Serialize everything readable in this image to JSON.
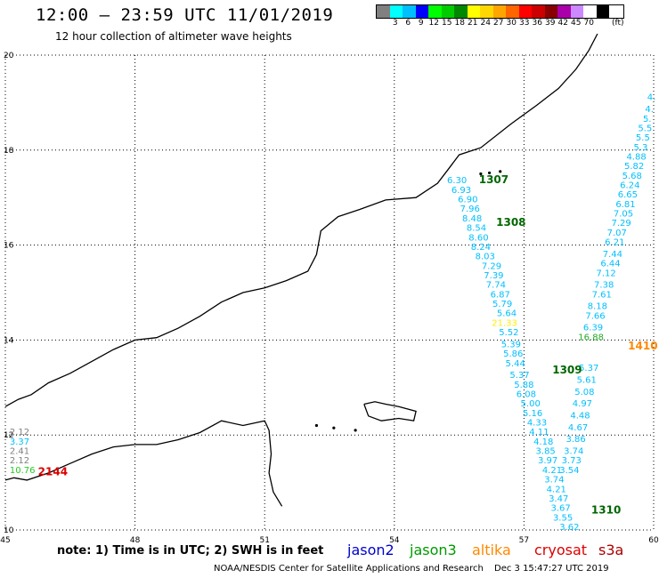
{
  "header": {
    "title": "12:00 — 23:59 UTC 11/01/2019",
    "subtitle": "12 hour collection of altimeter wave heights"
  },
  "scale": {
    "unit": "(ft)",
    "bins": [
      {
        "label": "",
        "color": "#808080"
      },
      {
        "label": "3",
        "color": "#00ffff"
      },
      {
        "label": "6",
        "color": "#00bfff"
      },
      {
        "label": "9",
        "color": "#0000ff"
      },
      {
        "label": "12",
        "color": "#00ff00"
      },
      {
        "label": "15",
        "color": "#00cc00"
      },
      {
        "label": "18",
        "color": "#008800"
      },
      {
        "label": "21",
        "color": "#ffff00"
      },
      {
        "label": "24",
        "color": "#ffd700"
      },
      {
        "label": "27",
        "color": "#ffa500"
      },
      {
        "label": "30",
        "color": "#ff6600"
      },
      {
        "label": "33",
        "color": "#ff0000"
      },
      {
        "label": "36",
        "color": "#cc0000"
      },
      {
        "label": "39",
        "color": "#880000"
      },
      {
        "label": "42",
        "color": "#aa00aa"
      },
      {
        "label": "45",
        "color": "#cc88ff"
      },
      {
        "label": "70",
        "color": "#ffffff"
      },
      {
        "label": "",
        "color": "#000000"
      }
    ]
  },
  "axes": {
    "lon_ticks": [
      "45",
      "48",
      "51",
      "54",
      "57",
      "60"
    ],
    "lat_ticks": [
      "20",
      "18",
      "16",
      "14",
      "12",
      "10"
    ]
  },
  "map_data": {
    "lon_range": [
      45,
      60
    ],
    "lat_range": [
      10,
      20
    ],
    "coastline": [
      [
        45.0,
        11.05
      ],
      [
        45.2,
        11.1
      ],
      [
        45.5,
        11.05
      ],
      [
        46.0,
        11.2
      ],
      [
        46.5,
        11.4
      ],
      [
        47.0,
        11.6
      ],
      [
        47.5,
        11.75
      ],
      [
        48.0,
        11.8
      ],
      [
        48.5,
        11.8
      ],
      [
        49.0,
        11.9
      ],
      [
        49.5,
        12.05
      ],
      [
        50.0,
        12.3
      ],
      [
        50.5,
        12.2
      ],
      [
        51.0,
        12.3
      ],
      [
        51.1,
        12.1
      ],
      [
        51.15,
        11.6
      ],
      [
        51.1,
        11.2
      ],
      [
        51.2,
        10.8
      ],
      [
        51.4,
        10.5
      ]
    ],
    "coastline_north": [
      [
        45.0,
        12.6
      ],
      [
        45.3,
        12.75
      ],
      [
        45.6,
        12.85
      ],
      [
        46.0,
        13.1
      ],
      [
        46.5,
        13.3
      ],
      [
        47.0,
        13.55
      ],
      [
        47.5,
        13.8
      ],
      [
        48.0,
        14.0
      ],
      [
        48.5,
        14.05
      ],
      [
        49.0,
        14.25
      ],
      [
        49.5,
        14.5
      ],
      [
        50.0,
        14.8
      ],
      [
        50.5,
        15.0
      ],
      [
        51.0,
        15.1
      ],
      [
        51.5,
        15.25
      ],
      [
        52.0,
        15.45
      ],
      [
        52.2,
        15.8
      ],
      [
        52.3,
        16.3
      ],
      [
        52.7,
        16.6
      ],
      [
        53.2,
        16.75
      ],
      [
        53.8,
        16.95
      ],
      [
        54.5,
        17.0
      ],
      [
        55.0,
        17.3
      ],
      [
        55.25,
        17.6
      ],
      [
        55.5,
        17.9
      ],
      [
        56.0,
        18.05
      ],
      [
        56.7,
        18.55
      ],
      [
        57.3,
        18.95
      ],
      [
        57.8,
        19.3
      ],
      [
        58.2,
        19.7
      ],
      [
        58.5,
        20.1
      ],
      [
        58.7,
        20.45
      ]
    ],
    "island_socotra": [
      [
        53.3,
        12.65
      ],
      [
        53.55,
        12.7
      ],
      [
        53.8,
        12.65
      ],
      [
        54.1,
        12.6
      ],
      [
        54.5,
        12.5
      ],
      [
        54.45,
        12.3
      ],
      [
        54.1,
        12.35
      ],
      [
        53.7,
        12.3
      ],
      [
        53.4,
        12.4
      ],
      [
        53.3,
        12.65
      ]
    ],
    "islets": [
      [
        52.2,
        12.2
      ],
      [
        52.6,
        12.15
      ],
      [
        53.1,
        12.1
      ],
      [
        56.0,
        17.5
      ],
      [
        56.2,
        17.52
      ],
      [
        56.45,
        17.55
      ]
    ],
    "passes": [
      {
        "label": "1307",
        "lon": 56.3,
        "lat": 17.3,
        "color": "#006600"
      },
      {
        "label": "1308",
        "lon": 56.7,
        "lat": 16.4,
        "color": "#006600"
      },
      {
        "label": "1309",
        "lon": 58.0,
        "lat": 13.3,
        "color": "#006600"
      },
      {
        "label": "1310",
        "lon": 58.9,
        "lat": 10.35,
        "color": "#006600"
      },
      {
        "label": "1410",
        "lon": 59.75,
        "lat": 13.8,
        "color": "#ff8800"
      },
      {
        "label": "2144",
        "lon": 46.1,
        "lat": 11.15,
        "color": "#dd0000"
      }
    ],
    "track_a": [
      {
        "v": "6.30",
        "lon": 55.45,
        "lat": 17.3
      },
      {
        "v": "6.93",
        "lon": 55.55,
        "lat": 17.1
      },
      {
        "v": "6.90",
        "lon": 55.7,
        "lat": 16.9
      },
      {
        "v": "7.96",
        "lon": 55.75,
        "lat": 16.7
      },
      {
        "v": "8.48",
        "lon": 55.8,
        "lat": 16.5
      },
      {
        "v": "8.54",
        "lon": 55.9,
        "lat": 16.3
      },
      {
        "v": "8.60",
        "lon": 55.95,
        "lat": 16.1
      },
      {
        "v": "8.24",
        "lon": 56.0,
        "lat": 15.9
      },
      {
        "v": "8.03",
        "lon": 56.1,
        "lat": 15.7
      },
      {
        "v": "7.29",
        "lon": 56.25,
        "lat": 15.5
      },
      {
        "v": "7.39",
        "lon": 56.3,
        "lat": 15.3
      },
      {
        "v": "7.74",
        "lon": 56.35,
        "lat": 15.1
      },
      {
        "v": "6.87",
        "lon": 56.45,
        "lat": 14.9
      },
      {
        "v": "5.79",
        "lon": 56.5,
        "lat": 14.7
      },
      {
        "v": "5.64",
        "lon": 56.6,
        "lat": 14.5
      },
      {
        "v": "21.33",
        "lon": 56.55,
        "lat": 14.3,
        "color": "#ffee00"
      },
      {
        "v": "5.52",
        "lon": 56.65,
        "lat": 14.1
      },
      {
        "v": "5.39",
        "lon": 56.7,
        "lat": 13.85
      },
      {
        "v": "5.86",
        "lon": 56.75,
        "lat": 13.65
      },
      {
        "v": "5.44",
        "lon": 56.8,
        "lat": 13.45
      },
      {
        "v": "5.37",
        "lon": 56.9,
        "lat": 13.2
      },
      {
        "v": "5.88",
        "lon": 57.0,
        "lat": 13.0
      },
      {
        "v": "6.08",
        "lon": 57.05,
        "lat": 12.8
      },
      {
        "v": "5.00",
        "lon": 57.15,
        "lat": 12.6
      },
      {
        "v": "5.16",
        "lon": 57.2,
        "lat": 12.4
      },
      {
        "v": "4.33",
        "lon": 57.3,
        "lat": 12.2
      },
      {
        "v": "4.11",
        "lon": 57.35,
        "lat": 12.0
      },
      {
        "v": "4.18",
        "lon": 57.45,
        "lat": 11.8
      },
      {
        "v": "3.85",
        "lon": 57.5,
        "lat": 11.6
      },
      {
        "v": "3.97",
        "lon": 57.55,
        "lat": 11.4
      },
      {
        "v": "4.21",
        "lon": 57.65,
        "lat": 11.2
      },
      {
        "v": "3.74",
        "lon": 57.7,
        "lat": 11.0
      },
      {
        "v": "4.21",
        "lon": 57.75,
        "lat": 10.8
      },
      {
        "v": "3.47",
        "lon": 57.8,
        "lat": 10.6
      },
      {
        "v": "3.67",
        "lon": 57.85,
        "lat": 10.4
      },
      {
        "v": "3.55",
        "lon": 57.9,
        "lat": 10.2
      },
      {
        "v": "3.62",
        "lon": 58.05,
        "lat": 10.0
      }
    ],
    "track_b": [
      {
        "v": "4.",
        "lon": 59.95,
        "lat": 19.05
      },
      {
        "v": "4.",
        "lon": 59.9,
        "lat": 18.8
      },
      {
        "v": "5.",
        "lon": 59.85,
        "lat": 18.6
      },
      {
        "v": "5.5",
        "lon": 59.8,
        "lat": 18.4
      },
      {
        "v": "5.5",
        "lon": 59.75,
        "lat": 18.2
      },
      {
        "v": "5.3",
        "lon": 59.7,
        "lat": 18.0
      },
      {
        "v": "4.88",
        "lon": 59.6,
        "lat": 17.8
      },
      {
        "v": "5.82",
        "lon": 59.55,
        "lat": 17.6
      },
      {
        "v": "5.68",
        "lon": 59.5,
        "lat": 17.4
      },
      {
        "v": "6.24",
        "lon": 59.45,
        "lat": 17.2
      },
      {
        "v": "6.65",
        "lon": 59.4,
        "lat": 17.0
      },
      {
        "v": "6.81",
        "lon": 59.35,
        "lat": 16.8
      },
      {
        "v": "7.05",
        "lon": 59.3,
        "lat": 16.6
      },
      {
        "v": "7.29",
        "lon": 59.25,
        "lat": 16.4
      },
      {
        "v": "7.07",
        "lon": 59.15,
        "lat": 16.2
      },
      {
        "v": "6.21",
        "lon": 59.1,
        "lat": 16.0
      },
      {
        "v": "7.44",
        "lon": 59.05,
        "lat": 15.75
      },
      {
        "v": "6.44",
        "lon": 59.0,
        "lat": 15.55
      },
      {
        "v": "7.12",
        "lon": 58.9,
        "lat": 15.35
      },
      {
        "v": "7.38",
        "lon": 58.85,
        "lat": 15.1
      },
      {
        "v": "7.61",
        "lon": 58.8,
        "lat": 14.9
      },
      {
        "v": "8.18",
        "lon": 58.7,
        "lat": 14.65
      },
      {
        "v": "7.66",
        "lon": 58.65,
        "lat": 14.45
      },
      {
        "v": "6.39",
        "lon": 58.6,
        "lat": 14.2
      },
      {
        "v": "16.88",
        "lon": 58.55,
        "lat": 14.0,
        "color": "#22aa22"
      },
      {
        "v": "5.37",
        "lon": 58.5,
        "lat": 13.35
      },
      {
        "v": "5.61",
        "lon": 58.45,
        "lat": 13.1
      },
      {
        "v": "5.08",
        "lon": 58.4,
        "lat": 12.85
      },
      {
        "v": "4.97",
        "lon": 58.35,
        "lat": 12.6
      },
      {
        "v": "4.48",
        "lon": 58.3,
        "lat": 12.35
      },
      {
        "v": "4.67",
        "lon": 58.25,
        "lat": 12.1
      },
      {
        "v": "3.86",
        "lon": 58.2,
        "lat": 11.85
      },
      {
        "v": "3.74",
        "lon": 58.15,
        "lat": 11.6
      },
      {
        "v": "3.73",
        "lon": 58.1,
        "lat": 11.4
      },
      {
        "v": "3.54",
        "lon": 58.05,
        "lat": 11.2
      }
    ],
    "left_values": [
      {
        "v": "2.12",
        "lon": 45.1,
        "lat": 12.0,
        "color": "#808080"
      },
      {
        "v": "3.37",
        "lon": 45.1,
        "lat": 11.8,
        "color": "#00bfff"
      },
      {
        "v": "2.41",
        "lon": 45.1,
        "lat": 11.6,
        "color": "#808080"
      },
      {
        "v": "2.12",
        "lon": 45.1,
        "lat": 11.4,
        "color": "#808080"
      },
      {
        "v": "10.76",
        "lon": 45.1,
        "lat": 11.2,
        "color": "#22cc22"
      }
    ]
  },
  "footer": {
    "note": "note: 1) Time is in UTC; 2) SWH is in feet",
    "legend": [
      {
        "name": "jason2",
        "color": "#0000cc"
      },
      {
        "name": "jason3",
        "color": "#009900"
      },
      {
        "name": "altika",
        "color": "#ff8800"
      },
      {
        "name": "cryosat",
        "color": "#dd0000"
      },
      {
        "name": "s3a",
        "color": "#aa0000"
      }
    ],
    "credit": "NOAA/NESDIS Center for Satellite Applications and Research",
    "timestamp": "Dec  3 15:47:27 UTC 2019"
  }
}
